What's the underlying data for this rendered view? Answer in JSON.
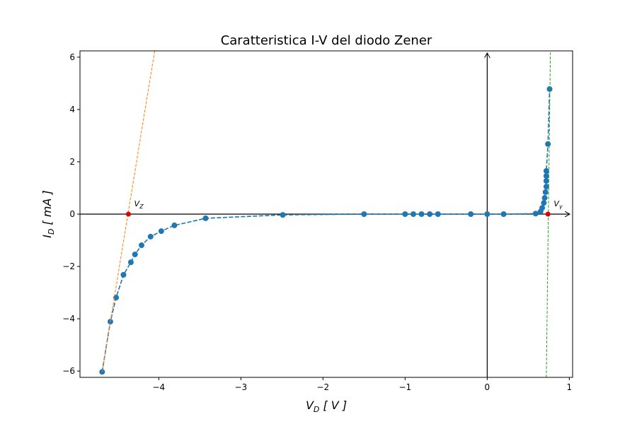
{
  "chart_data": {
    "type": "line",
    "title": "Caratteristica I-V del diodo Zener",
    "x_label": {
      "main": "V",
      "sub": "D",
      "rest": " [ V ]"
    },
    "y_label": {
      "main": "I",
      "sub": "D",
      "rest": " [ mA ]"
    },
    "xlim": [
      -4.96,
      1.04
    ],
    "ylim": [
      -6.24,
      6.24
    ],
    "xticks": [
      {
        "value": -4,
        "label": "−4"
      },
      {
        "value": -3,
        "label": "−3"
      },
      {
        "value": -2,
        "label": "−2"
      },
      {
        "value": -1,
        "label": "−1"
      },
      0,
      1
    ],
    "yticks": [
      {
        "value": -6,
        "label": "−6"
      },
      {
        "value": -4,
        "label": "−4"
      },
      {
        "value": -2,
        "label": "−2"
      },
      0,
      2,
      4,
      6
    ],
    "origin_axes": true,
    "series": [
      {
        "color": "#1f77b4",
        "style": "dashed-markers",
        "x": [
          -4.69,
          -4.59,
          -4.52,
          -4.43,
          -4.34,
          -4.29,
          -4.21,
          -4.1,
          -3.97,
          -3.81,
          -3.43,
          -2.49,
          -1.5,
          -1.0,
          -0.9,
          -0.8,
          -0.7,
          -0.6,
          -0.2,
          0,
          0.2,
          0.59,
          0.65,
          0.67,
          0.69,
          0.7,
          0.71,
          0.72,
          0.72,
          0.72,
          0.72,
          0.74,
          0.76
        ],
        "values": [
          -6.03,
          -4.11,
          -3.19,
          -2.32,
          -1.84,
          -1.54,
          -1.19,
          -0.86,
          -0.65,
          -0.43,
          -0.16,
          -0.03,
          0,
          0,
          0,
          0,
          0,
          0,
          0,
          0,
          0,
          0.02,
          0.1,
          0.24,
          0.43,
          0.62,
          0.84,
          1.05,
          1.27,
          1.46,
          1.65,
          2.68,
          4.78
        ]
      },
      {
        "color": "#ff7f0e",
        "style": "dashed",
        "x": [
          -4.69,
          -4.05
        ],
        "values": [
          -6.03,
          6.24
        ]
      },
      {
        "color": "#2ca02c",
        "style": "dashed",
        "x": [
          0.72,
          0.77
        ],
        "values": [
          -6.24,
          6.24
        ]
      },
      {
        "color": "#e00000",
        "style": "markers",
        "x": [
          -4.37,
          0.74
        ],
        "values": [
          0,
          0
        ]
      }
    ],
    "annotations": [
      {
        "x": -4.3,
        "y": 0.3,
        "text": "V",
        "sub": "Z"
      },
      {
        "x": 0.81,
        "y": 0.3,
        "text": "V",
        "sub": "γ"
      }
    ]
  }
}
